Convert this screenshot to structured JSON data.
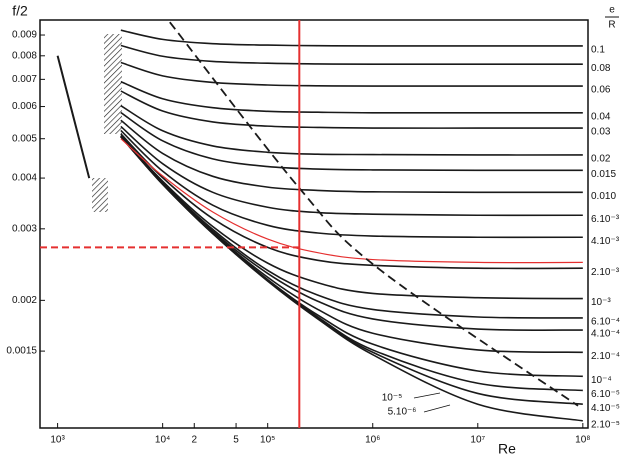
{
  "chart_data": {
    "type": "line",
    "log_x": true,
    "log_y": true,
    "grid": false,
    "y_label": "f/2",
    "x_label": "Re",
    "right_label": {
      "num": "e",
      "den": "R"
    },
    "xlim": [
      680,
      112000000
    ],
    "ylim": [
      0.00097,
      0.0098
    ],
    "xticks": [
      {
        "value": 1000,
        "label": "10³"
      },
      {
        "value": 10000,
        "label": "10⁴"
      },
      {
        "value": 20000,
        "label": "2"
      },
      {
        "value": 50000,
        "label": "5"
      },
      {
        "value": 100000,
        "label": "10⁵"
      },
      {
        "value": 1000000,
        "label": "10⁶"
      },
      {
        "value": 10000000,
        "label": "10⁷"
      },
      {
        "value": 100000000,
        "label": "10⁸"
      }
    ],
    "yticks": [
      0.009,
      0.008,
      0.007,
      0.006,
      0.005,
      0.004,
      0.003,
      0.002,
      0.0015
    ],
    "line_color": "#1a1a1a",
    "x": [
      4000,
      10000,
      30000,
      100000,
      300000,
      1000000,
      10000000,
      100000000
    ],
    "series": [
      {
        "name": "0.1",
        "values": [
          0.00925,
          0.00878,
          0.00857,
          0.0085,
          0.00847,
          0.00846,
          0.00846,
          0.00846
        ]
      },
      {
        "name": "0.08",
        "values": [
          0.00848,
          0.00798,
          0.00775,
          0.00767,
          0.00764,
          0.00763,
          0.00763,
          0.00763
        ]
      },
      {
        "name": "0.06",
        "values": [
          0.0077,
          0.00714,
          0.00688,
          0.00678,
          0.00675,
          0.00674,
          0.00674,
          0.00674
        ]
      },
      {
        "name": "0.04",
        "values": [
          0.00691,
          0.00627,
          0.00596,
          0.00584,
          0.00581,
          0.00579,
          0.00579,
          0.00579
        ]
      },
      {
        "name": "0.03",
        "values": [
          0.00655,
          0.00585,
          0.0055,
          0.00537,
          0.00533,
          0.00531,
          0.00531,
          0.00531
        ]
      },
      {
        "name": "0.02",
        "values": [
          0.00603,
          0.00523,
          0.0048,
          0.00463,
          0.00458,
          0.00457,
          0.00456,
          0.00456
        ]
      },
      {
        "name": "0.015",
        "values": [
          0.0058,
          0.00494,
          0.00446,
          0.00427,
          0.00421,
          0.00419,
          0.00418,
          0.00418
        ]
      },
      {
        "name": "0.010",
        "values": [
          0.00555,
          0.0046,
          0.00404,
          0.0038,
          0.00373,
          0.0037,
          0.00369,
          0.00369
        ]
      },
      {
        "name": "6.10⁻³",
        "values": [
          0.00536,
          0.00434,
          0.00369,
          0.00339,
          0.00329,
          0.00326,
          0.00324,
          0.00324
        ]
      },
      {
        "name": "4.10⁻³",
        "values": [
          0.00524,
          0.00416,
          0.00343,
          0.00306,
          0.00293,
          0.00288,
          0.00286,
          0.00286
        ]
      },
      {
        "name": "2.10⁻³",
        "values": [
          0.00514,
          0.00401,
          0.00318,
          0.0027,
          0.00251,
          0.00244,
          0.0024,
          0.0024
        ]
      },
      {
        "name": "10⁻³",
        "values": [
          0.00509,
          0.00393,
          0.00304,
          0.00247,
          0.00221,
          0.00208,
          0.00203,
          0.00202
        ]
      },
      {
        "name": "6.10⁻⁴",
        "values": [
          0.00508,
          0.0039,
          0.00299,
          0.00237,
          0.00206,
          0.0019,
          0.00182,
          0.00181
        ]
      },
      {
        "name": "4.10⁻⁴",
        "values": [
          0.00507,
          0.00389,
          0.00296,
          0.00233,
          0.00199,
          0.0018,
          0.0017,
          0.00169
        ]
      },
      {
        "name": "2.10⁻⁴",
        "values": [
          0.00506,
          0.00387,
          0.00294,
          0.00228,
          0.0019,
          0.00166,
          0.00151,
          0.00149
        ]
      },
      {
        "name": "10⁻⁴",
        "values": [
          0.00506,
          0.00387,
          0.00293,
          0.00225,
          0.00184,
          0.00156,
          0.00134,
          0.0013
        ]
      },
      {
        "name": "6.10⁻⁵",
        "values": [
          0.00506,
          0.00387,
          0.00292,
          0.00224,
          0.00182,
          0.00151,
          0.00125,
          0.0012
        ]
      },
      {
        "name": "4.10⁻⁵",
        "values": [
          0.00506,
          0.00386,
          0.00292,
          0.00224,
          0.00181,
          0.00149,
          0.00118,
          0.00111
        ]
      },
      {
        "name": "2.10⁻⁵",
        "values": [
          0.00506,
          0.00386,
          0.00292,
          0.00223,
          0.0018,
          0.00147,
          0.00111,
          0.00101
        ]
      }
    ],
    "highlight": {
      "color": "#e53030",
      "values": [
        0.005,
        0.00405,
        0.0033,
        0.00283,
        0.00262,
        0.00252,
        0.00248,
        0.00248
      ]
    },
    "markers": {
      "re": 200000,
      "f2": 0.0027,
      "color": "#e53030"
    },
    "laminar": {
      "x": [
        1000,
        2000
      ],
      "values": [
        0.008,
        0.004
      ]
    },
    "rough_limit": {
      "x": [
        11700,
        200000,
        1170000,
        90000000
      ],
      "values": [
        0.00968,
        0.00378,
        0.00238,
        0.0011
      ],
      "dash": true
    },
    "annotations": [
      {
        "text": "10⁻⁵"
      },
      {
        "text": "5.10⁻⁶"
      }
    ]
  }
}
